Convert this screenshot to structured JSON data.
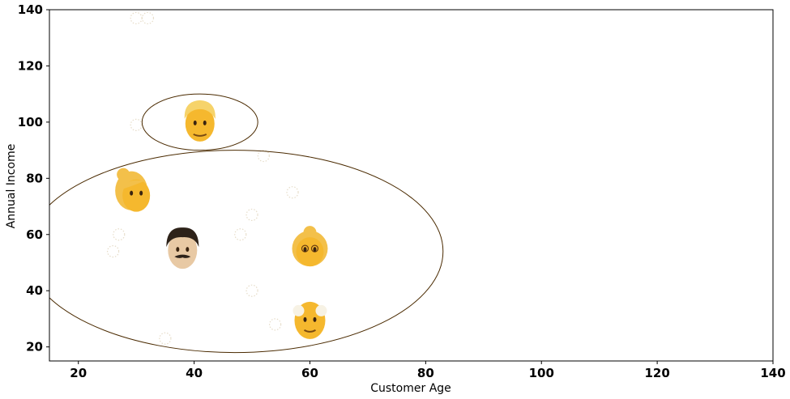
{
  "chart_data": {
    "type": "scatter",
    "title": "",
    "xlabel": "Customer Age",
    "ylabel": "Annual Income",
    "xlim": [
      15,
      140
    ],
    "ylim": [
      15,
      140
    ],
    "xticks": [
      20,
      40,
      60,
      80,
      100,
      120,
      140
    ],
    "yticks": [
      20,
      40,
      60,
      80,
      100,
      120,
      140
    ],
    "grid": false,
    "colors": {
      "axis": "#000000",
      "ellipse": "#4a2a00",
      "faint_marker": "#e6dcc8",
      "emoji_skin": "#f5b82e",
      "emoji_hair": "#f3c04a"
    },
    "emoji_points": [
      {
        "x": 41,
        "y": 100,
        "icon": "man-blond-emoji"
      },
      {
        "x": 30,
        "y": 75,
        "icon": "woman-blonde-emoji"
      },
      {
        "x": 38,
        "y": 55,
        "icon": "man-mustache-emoji"
      },
      {
        "x": 60,
        "y": 55,
        "icon": "older-woman-emoji"
      },
      {
        "x": 60,
        "y": 30,
        "icon": "older-man-emoji"
      }
    ],
    "faint_points": [
      {
        "x": 30,
        "y": 137
      },
      {
        "x": 32,
        "y": 137
      },
      {
        "x": 30,
        "y": 99
      },
      {
        "x": 52,
        "y": 88
      },
      {
        "x": 57,
        "y": 75
      },
      {
        "x": 50,
        "y": 67
      },
      {
        "x": 27,
        "y": 60
      },
      {
        "x": 48,
        "y": 60
      },
      {
        "x": 26,
        "y": 54
      },
      {
        "x": 50,
        "y": 40
      },
      {
        "x": 54,
        "y": 28
      },
      {
        "x": 35,
        "y": 23
      }
    ],
    "ellipses": [
      {
        "cx": 41,
        "cy": 100,
        "rx": 10,
        "ry": 10
      },
      {
        "cx": 47,
        "cy": 54,
        "rx": 36,
        "ry": 36
      }
    ]
  }
}
